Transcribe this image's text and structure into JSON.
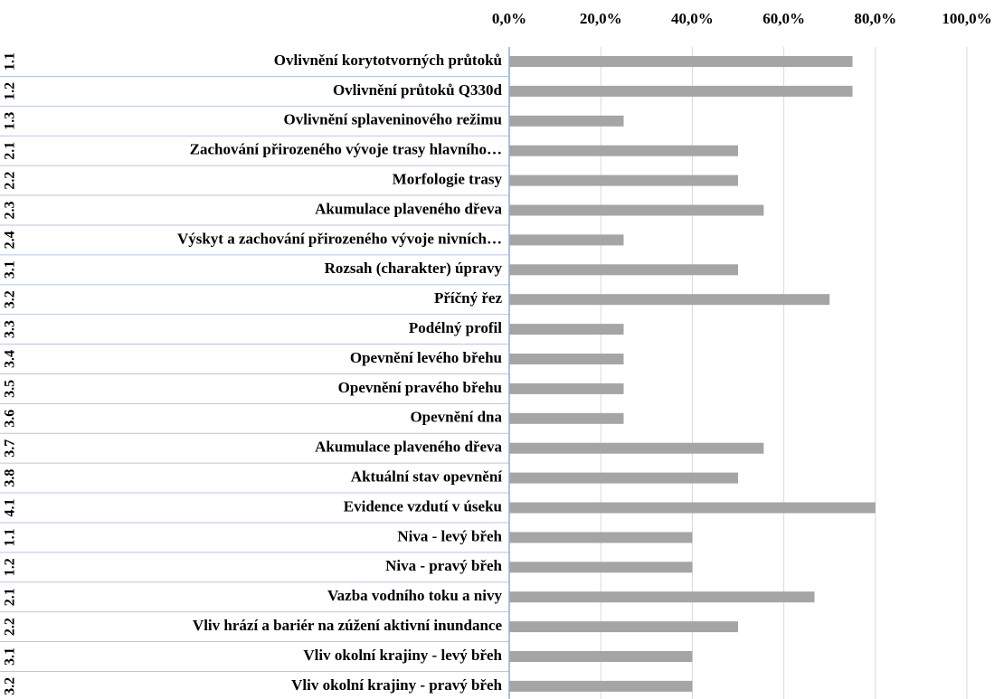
{
  "chart_data": {
    "type": "bar",
    "orientation": "horizontal",
    "categories": [
      "Ovlivnění korytotvorných průtoků",
      "Ovlivnění průtoků Q330d",
      "Ovlivnění splaveninového režimu",
      "Zachování přirozeného vývoje trasy hlavního…",
      "Morfologie trasy",
      "Akumulace plaveného dřeva",
      "Výskyt a zachování přirozeného vývoje nivních…",
      "Rozsah (charakter) úpravy",
      "Příčný řez",
      "Podélný profil",
      "Opevnění levého břehu",
      "Opevnění pravého břehu",
      "Opevnění dna",
      "Akumulace plaveného dřeva",
      "Aktuální stav opevnění",
      "Evidence vzdutí v úseku",
      "Niva - levý břeh",
      "Niva - pravý břeh",
      "Vazba vodního toku a nivy",
      "Vliv hrází a bariér na zúžení aktivní inundance",
      "Vliv okolní krajiny - levý břeh",
      "Vliv okolní krajiny - pravý břeh"
    ],
    "group_labels": [
      "1.1",
      "1.2",
      "1.3",
      "2.1",
      "2.2",
      "2.3",
      "2.4",
      "3.1",
      "3.2",
      "3.3",
      "3.4",
      "3.5",
      "3.6",
      "3.7",
      "3.8",
      "4.1",
      "1.1",
      "1.2",
      "2.1",
      "2.2",
      "3.1",
      "3.2"
    ],
    "values": [
      75,
      75,
      25,
      50,
      50,
      55.6,
      25,
      50,
      70,
      25,
      25,
      25,
      25,
      55.6,
      50,
      80,
      40,
      40,
      66.7,
      50,
      40,
      40
    ],
    "color": "#a5a5a5",
    "xlim": [
      0,
      100
    ],
    "xticks": [
      {
        "value": 0,
        "label": "0,0%"
      },
      {
        "value": 20,
        "label": "20,0%"
      },
      {
        "value": 40,
        "label": "40,0%"
      },
      {
        "value": 60,
        "label": "60,0%"
      },
      {
        "value": 80,
        "label": "80,0%"
      },
      {
        "value": 100,
        "label": "100,0%"
      }
    ],
    "grid": true
  }
}
